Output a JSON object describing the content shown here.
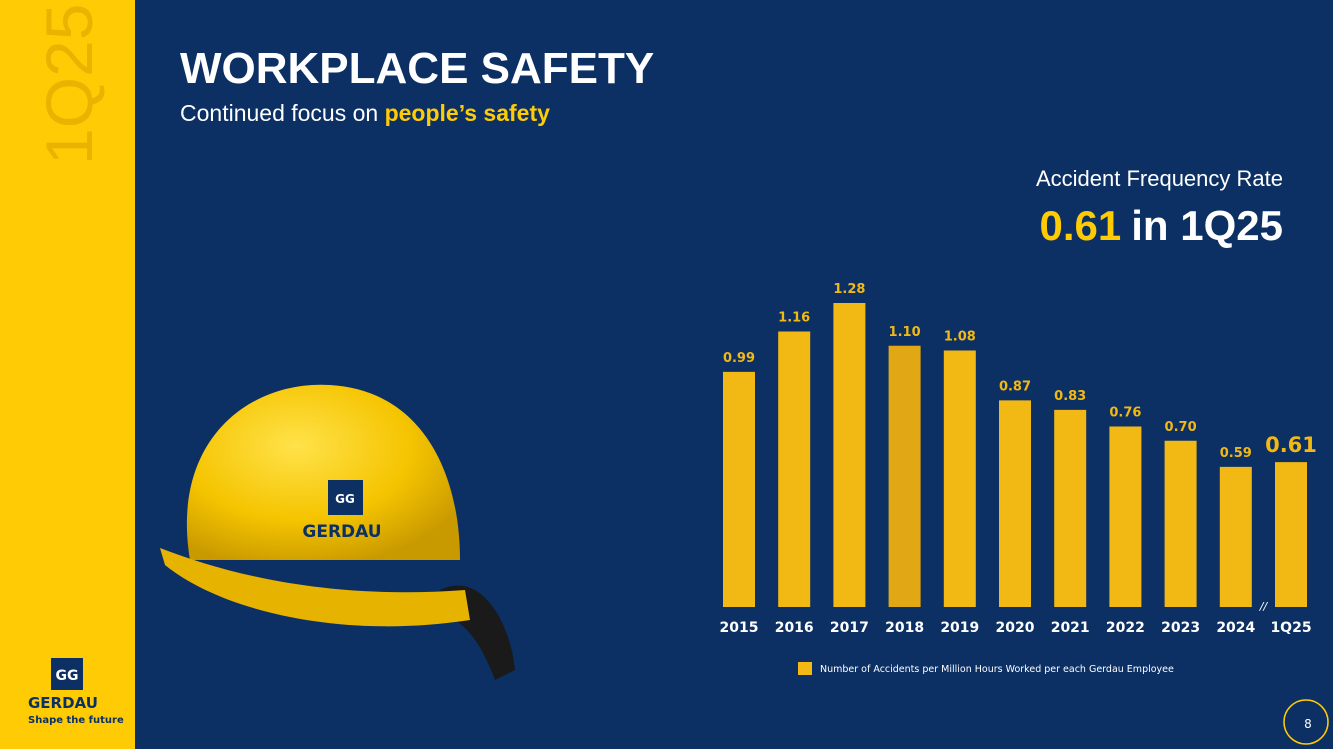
{
  "sidebar": {
    "period": "1Q25",
    "brand": "GERDAU",
    "tagline": "Shape the future"
  },
  "header": {
    "title": "WORKPLACE SAFETY",
    "subtitle": "Continued focus on ",
    "subtitle_highlight": "people’s safety"
  },
  "kpi": {
    "label": "Accident Frequency Rate",
    "value": 0.61,
    "suffix": "in 1Q25"
  },
  "helmet_text": "GERDAU",
  "page_number": 8,
  "chart_data": {
    "type": "bar",
    "categories": [
      "2015",
      "2016",
      "2017",
      "2018",
      "2019",
      "2020",
      "2021",
      "2022",
      "2023",
      "2024",
      "1Q25"
    ],
    "series": [
      {
        "name": "Number of Accidents per Million Hours Worked per each Gerdau Employee",
        "color": "#f2b914",
        "colors": [
          "#f2b914",
          "#f2b914",
          "#f2b914",
          "#e2a714",
          "#f2b914",
          "#f2b914",
          "#f2b914",
          "#f2b914",
          "#f2b914",
          "#f2b914",
          "#f2b914"
        ],
        "values": [
          0.99,
          1.16,
          1.28,
          1.1,
          1.08,
          0.87,
          0.83,
          0.76,
          0.7,
          0.59,
          0.61
        ],
        "value_labels": [
          "0.99",
          "1.16",
          "1.28",
          "1.10",
          "1.08",
          "0.87",
          "0.83",
          "0.76",
          "0.70",
          "0.59",
          "0.61"
        ]
      }
    ],
    "axis_break": "//"
  }
}
